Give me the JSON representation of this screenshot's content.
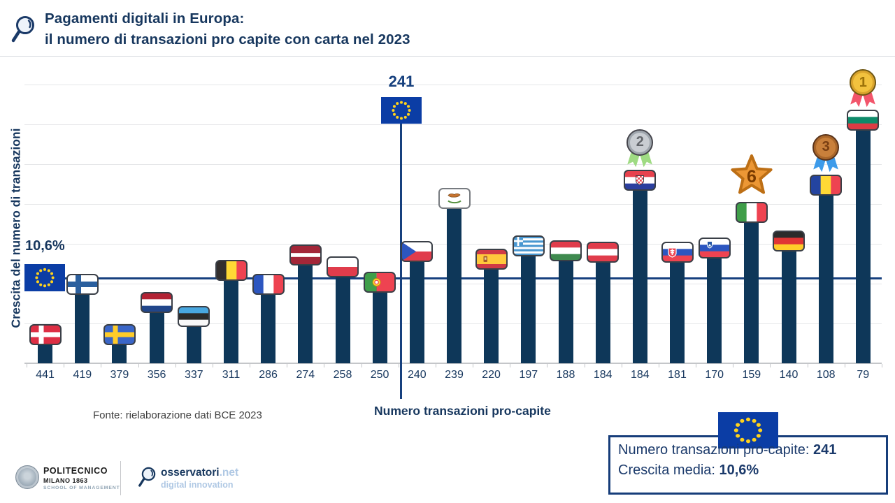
{
  "header": {
    "title_line1": "Pagamenti digitali in Europa:",
    "title_line2": "il numero di transazioni pro capite con carta nel 2023"
  },
  "chart": {
    "y_axis_label": "Crescita del numero di transazioni",
    "x_axis_label": "Numero transazioni  pro-capite",
    "source": "Fonte: rielaborazione dati BCE 2023",
    "eu_avg_growth_label": "10,6%",
    "eu_transactions_label": "241"
  },
  "chart_data": {
    "type": "bar",
    "title": "Pagamenti digitali in Europa: il numero di transazioni pro capite con carta nel 2023",
    "xlabel": "Numero transazioni pro-capite",
    "ylabel": "Crescita del numero di transazioni",
    "ylim": [
      0,
      35
    ],
    "gridline_step_pct": 5,
    "grid": true,
    "average_line": {
      "growth_pct": 10.6,
      "label": "10,6%"
    },
    "eu_marker": {
      "transactions": 241,
      "label": "241"
    },
    "countries": [
      {
        "name": "Denmark",
        "code": "dk",
        "transactions": 441,
        "growth_pct": 3.7,
        "badge": null
      },
      {
        "name": "Finland",
        "code": "fi",
        "transactions": 419,
        "growth_pct": 10.0,
        "badge": null
      },
      {
        "name": "Sweden",
        "code": "se",
        "transactions": 379,
        "growth_pct": 3.7,
        "badge": null
      },
      {
        "name": "Netherlands",
        "code": "nl",
        "transactions": 356,
        "growth_pct": 7.7,
        "badge": null
      },
      {
        "name": "Estonia",
        "code": "ee",
        "transactions": 337,
        "growth_pct": 6.0,
        "badge": null
      },
      {
        "name": "Belgium",
        "code": "be",
        "transactions": 311,
        "growth_pct": 11.8,
        "badge": null
      },
      {
        "name": "France",
        "code": "fr",
        "transactions": 286,
        "growth_pct": 10.0,
        "badge": null
      },
      {
        "name": "Latvia",
        "code": "lv",
        "transactions": 274,
        "growth_pct": 13.7,
        "badge": null
      },
      {
        "name": "Poland",
        "code": "pl",
        "transactions": 258,
        "growth_pct": 12.2,
        "badge": null
      },
      {
        "name": "Portugal",
        "code": "pt",
        "transactions": 250,
        "growth_pct": 10.3,
        "badge": null
      },
      {
        "name": "Czech Republic",
        "code": "cz",
        "transactions": 240,
        "growth_pct": 14.1,
        "badge": null
      },
      {
        "name": "Cyprus",
        "code": "cy",
        "transactions": 239,
        "growth_pct": 20.8,
        "badge": null
      },
      {
        "name": "Spain",
        "code": "es",
        "transactions": 220,
        "growth_pct": 13.2,
        "badge": null
      },
      {
        "name": "Greece",
        "code": "gr",
        "transactions": 197,
        "growth_pct": 14.8,
        "badge": null
      },
      {
        "name": "Hungary",
        "code": "hu",
        "transactions": 188,
        "growth_pct": 14.2,
        "badge": null
      },
      {
        "name": "Austria",
        "code": "at",
        "transactions": 184,
        "growth_pct": 14.0,
        "badge": null
      },
      {
        "name": "Croatia",
        "code": "hr",
        "transactions": 184,
        "growth_pct": 23.1,
        "badge": {
          "type": "medal",
          "rank": 2,
          "metal": "silver"
        }
      },
      {
        "name": "Slovakia",
        "code": "sk",
        "transactions": 181,
        "growth_pct": 14.0,
        "badge": null
      },
      {
        "name": "Slovenia",
        "code": "si",
        "transactions": 170,
        "growth_pct": 14.6,
        "badge": null
      },
      {
        "name": "Italy",
        "code": "it",
        "transactions": 159,
        "growth_pct": 19.0,
        "badge": {
          "type": "star",
          "rank": 6
        }
      },
      {
        "name": "Germany",
        "code": "de",
        "transactions": 140,
        "growth_pct": 15.4,
        "badge": null
      },
      {
        "name": "Romania",
        "code": "ro",
        "transactions": 108,
        "growth_pct": 22.5,
        "badge": {
          "type": "medal",
          "rank": 3,
          "metal": "bronze"
        }
      },
      {
        "name": "Bulgaria",
        "code": "bg",
        "transactions": 79,
        "growth_pct": 30.6,
        "badge": {
          "type": "medal",
          "rank": 1,
          "metal": "gold"
        }
      }
    ]
  },
  "legend": {
    "line1_label": "Numero transazioni pro-capite: ",
    "line1_value": "241",
    "line2_label": "Crescita media: ",
    "line2_value": "10,6%"
  },
  "footer": {
    "politecnico": {
      "line1": "POLITECNICO",
      "line2": "MILANO 1863",
      "line3": "SCHOOL OF MANAGEMENT"
    },
    "osservatori": {
      "brand": "osservatori",
      "tld": ".net",
      "tagline": "digital innovation"
    }
  },
  "colors": {
    "navy_text": "#17375E",
    "bar": "#0E3759",
    "blue_line": "#16407E",
    "eu_blue": "#0B3DA5",
    "eu_star_yellow": "#FFD21C",
    "gridline": "#E5E6E8"
  }
}
